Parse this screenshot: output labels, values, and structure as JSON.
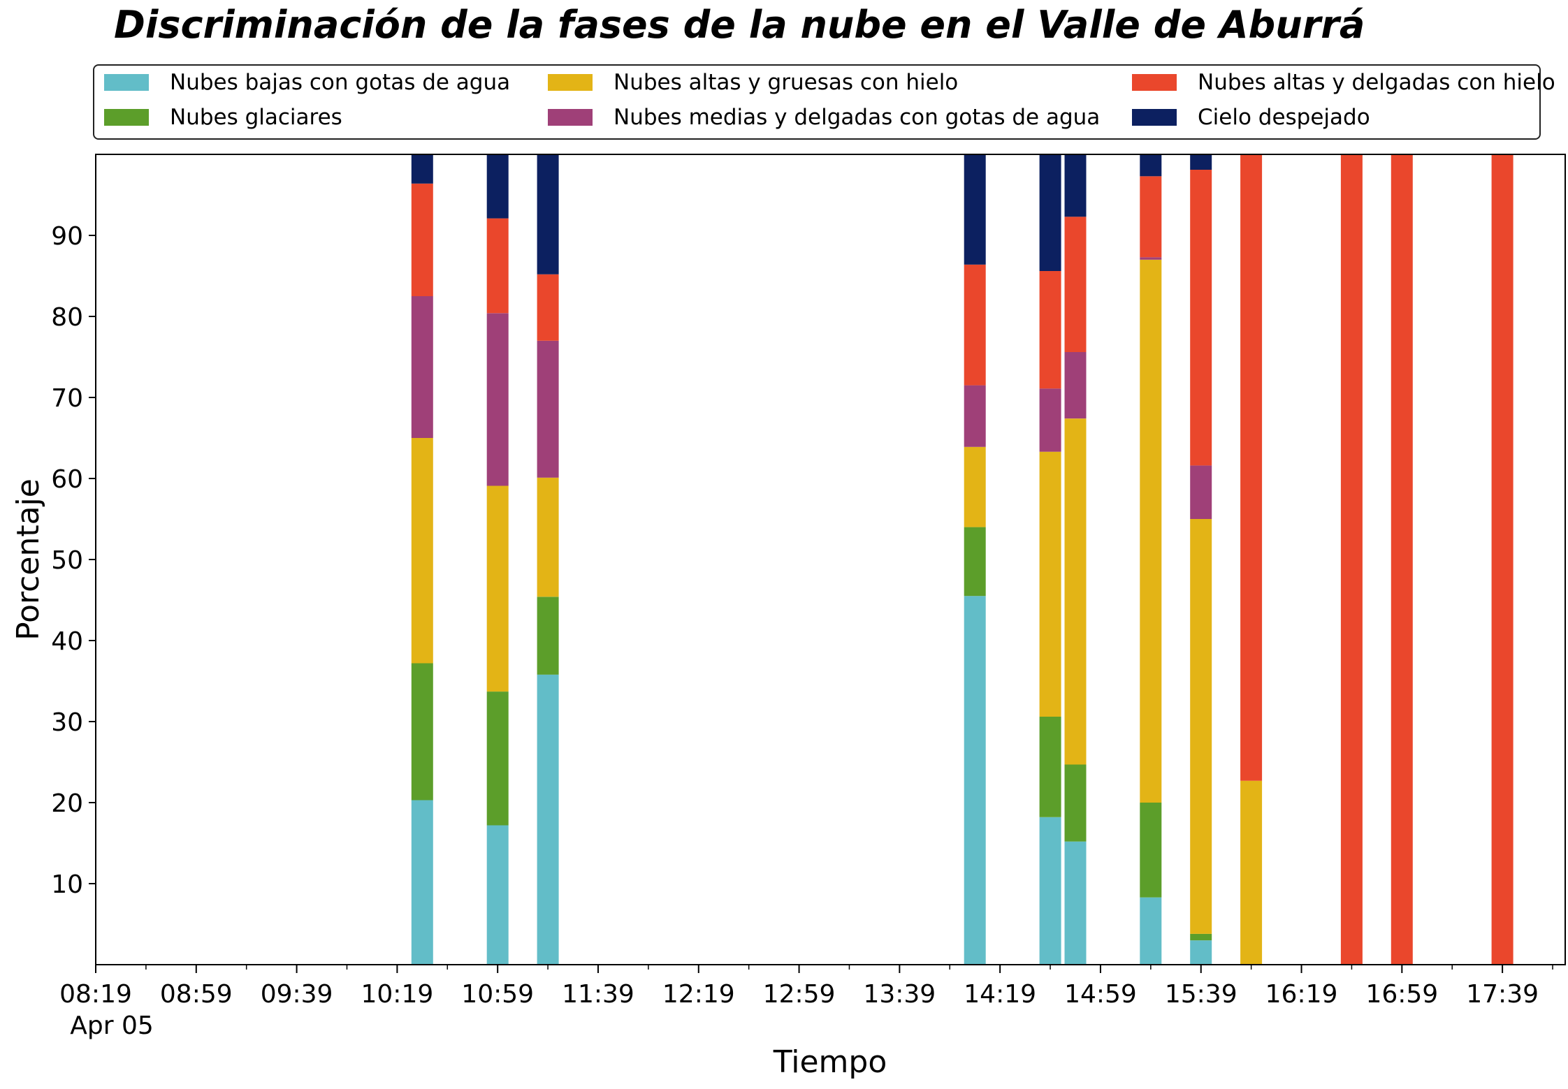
{
  "chart_data": {
    "type": "bar",
    "stacked": true,
    "title": "Discriminación de la fases de la nube en el Valle de Aburrá",
    "xlabel": "Tiempo",
    "ylabel": "Porcentaje",
    "ylim": [
      0,
      100
    ],
    "yticks": [
      10,
      20,
      30,
      40,
      50,
      60,
      70,
      80,
      90
    ],
    "xlim": [
      "08:19",
      "18:04"
    ],
    "xticks": [
      "08:19",
      "08:59",
      "09:39",
      "10:19",
      "10:59",
      "11:39",
      "12:19",
      "12:59",
      "13:39",
      "14:19",
      "14:59",
      "15:39",
      "16:19",
      "16:59",
      "17:39"
    ],
    "xticks_minor": [
      "08:39",
      "09:19",
      "09:59",
      "10:39",
      "11:19",
      "11:59",
      "12:39",
      "13:19",
      "13:59",
      "14:39",
      "15:19",
      "15:59",
      "16:39",
      "17:19",
      "17:59"
    ],
    "date_label": "Apr 05",
    "grid": false,
    "legend_position": "top, 3 columns",
    "x": [
      "10:29",
      "10:59",
      "11:19",
      "14:09",
      "14:39",
      "14:49",
      "15:19",
      "15:39",
      "15:59",
      "16:39",
      "16:59",
      "17:39"
    ],
    "series": [
      {
        "name": "Nubes bajas con gotas de agua",
        "color": "#62bdc8",
        "values": [
          20.3,
          17.2,
          35.8,
          45.5,
          18.2,
          15.2,
          8.3,
          3.0,
          0,
          0,
          0,
          0
        ]
      },
      {
        "name": "Nubes glaciares",
        "color": "#5c9e2a",
        "values": [
          16.9,
          16.5,
          9.6,
          8.5,
          12.4,
          9.5,
          11.7,
          0.8,
          0,
          0,
          0,
          0
        ]
      },
      {
        "name": "Nubes altas y gruesas con hielo",
        "color": "#e3b416",
        "values": [
          27.8,
          25.4,
          14.7,
          9.9,
          32.7,
          42.7,
          67.0,
          51.2,
          22.7,
          0,
          0,
          0
        ]
      },
      {
        "name": "Nubes medias y delgadas con gotas de agua",
        "color": "#9f4078",
        "values": [
          17.5,
          21.3,
          16.9,
          7.6,
          7.8,
          8.2,
          0.3,
          6.6,
          0,
          0,
          0,
          0
        ]
      },
      {
        "name": "Nubes altas y delgadas con hielo",
        "color": "#ea472c",
        "values": [
          13.9,
          11.7,
          8.2,
          14.9,
          14.5,
          16.7,
          10.0,
          36.5,
          77.3,
          100,
          100,
          100
        ]
      },
      {
        "name": "Cielo despejado",
        "color": "#0c2060",
        "values": [
          3.6,
          7.9,
          14.8,
          13.6,
          14.4,
          7.7,
          2.7,
          1.9,
          0,
          0,
          0,
          0
        ]
      }
    ]
  }
}
